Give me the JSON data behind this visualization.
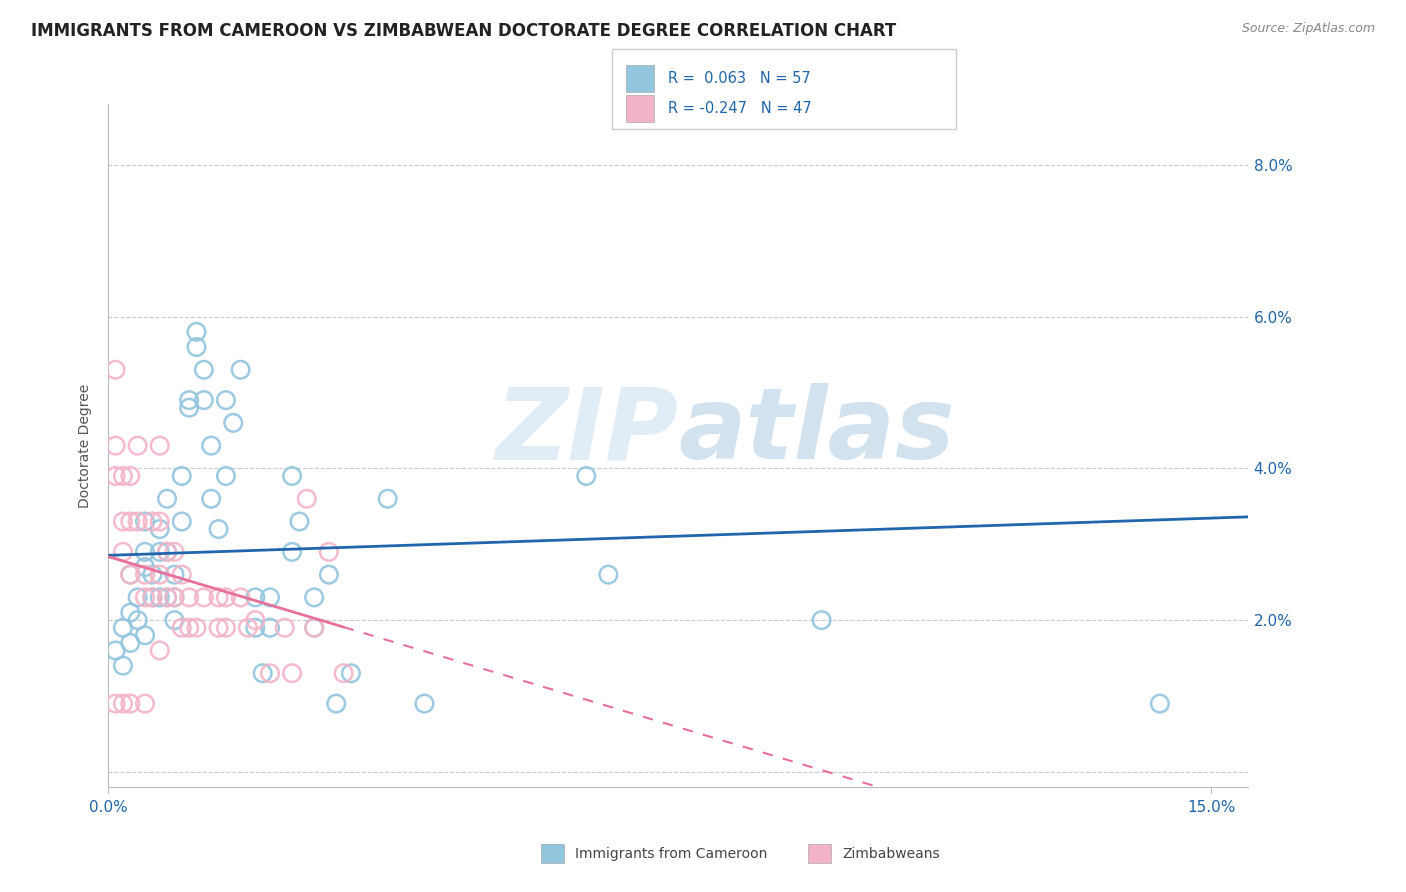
{
  "title": "IMMIGRANTS FROM CAMEROON VS ZIMBABWEAN DOCTORATE DEGREE CORRELATION CHART",
  "source": "Source: ZipAtlas.com",
  "ylabel": "Doctorate Degree",
  "xlim": [
    0.0,
    0.155
  ],
  "ylim": [
    -0.002,
    0.088
  ],
  "xticks": [
    0.0,
    0.15
  ],
  "xticklabels": [
    "0.0%",
    "15.0%"
  ],
  "yticks_right": [
    0.0,
    0.02,
    0.04,
    0.06,
    0.08
  ],
  "yticklabels_right": [
    "",
    "2.0%",
    "4.0%",
    "6.0%",
    "8.0%"
  ],
  "blue_color": "#92c5de",
  "pink_color": "#f4b4c8",
  "trend_blue": "#2166ac",
  "trend_pink": "#e8709a",
  "watermark_zip": "ZIP",
  "watermark_atlas": "atlas",
  "title_fontsize": 12,
  "axis_label_fontsize": 10,
  "tick_fontsize": 11,
  "blue_scatter_x": [
    0.001,
    0.002,
    0.002,
    0.003,
    0.003,
    0.003,
    0.004,
    0.004,
    0.005,
    0.005,
    0.005,
    0.005,
    0.006,
    0.006,
    0.007,
    0.007,
    0.007,
    0.008,
    0.008,
    0.008,
    0.009,
    0.009,
    0.009,
    0.01,
    0.01,
    0.011,
    0.011,
    0.012,
    0.012,
    0.013,
    0.013,
    0.014,
    0.014,
    0.015,
    0.016,
    0.016,
    0.017,
    0.018,
    0.02,
    0.02,
    0.021,
    0.022,
    0.022,
    0.025,
    0.025,
    0.026,
    0.028,
    0.028,
    0.03,
    0.031,
    0.033,
    0.038,
    0.043,
    0.065,
    0.068,
    0.097,
    0.143
  ],
  "blue_scatter_y": [
    0.016,
    0.019,
    0.014,
    0.026,
    0.021,
    0.017,
    0.023,
    0.02,
    0.018,
    0.033,
    0.029,
    0.027,
    0.026,
    0.023,
    0.032,
    0.029,
    0.023,
    0.036,
    0.029,
    0.023,
    0.026,
    0.023,
    0.02,
    0.039,
    0.033,
    0.048,
    0.049,
    0.056,
    0.058,
    0.053,
    0.049,
    0.043,
    0.036,
    0.032,
    0.049,
    0.039,
    0.046,
    0.053,
    0.023,
    0.019,
    0.013,
    0.019,
    0.023,
    0.039,
    0.029,
    0.033,
    0.023,
    0.019,
    0.026,
    0.009,
    0.013,
    0.036,
    0.009,
    0.039,
    0.026,
    0.02,
    0.009
  ],
  "pink_scatter_x": [
    0.001,
    0.001,
    0.001,
    0.001,
    0.002,
    0.002,
    0.002,
    0.002,
    0.003,
    0.003,
    0.003,
    0.003,
    0.004,
    0.004,
    0.005,
    0.005,
    0.005,
    0.006,
    0.006,
    0.007,
    0.007,
    0.007,
    0.007,
    0.008,
    0.008,
    0.009,
    0.009,
    0.01,
    0.01,
    0.011,
    0.011,
    0.012,
    0.013,
    0.015,
    0.015,
    0.016,
    0.016,
    0.018,
    0.019,
    0.02,
    0.022,
    0.024,
    0.025,
    0.027,
    0.028,
    0.03,
    0.032
  ],
  "pink_scatter_y": [
    0.053,
    0.043,
    0.039,
    0.009,
    0.039,
    0.033,
    0.029,
    0.009,
    0.039,
    0.033,
    0.026,
    0.009,
    0.043,
    0.033,
    0.026,
    0.023,
    0.009,
    0.033,
    0.023,
    0.043,
    0.033,
    0.026,
    0.016,
    0.029,
    0.023,
    0.029,
    0.023,
    0.026,
    0.019,
    0.023,
    0.019,
    0.019,
    0.023,
    0.023,
    0.019,
    0.023,
    0.019,
    0.023,
    0.019,
    0.02,
    0.013,
    0.019,
    0.013,
    0.036,
    0.019,
    0.029,
    0.013
  ]
}
